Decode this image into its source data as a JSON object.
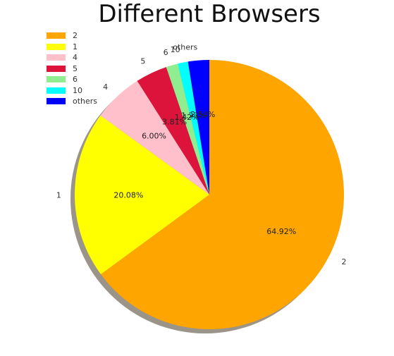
{
  "chart_data": {
    "type": "pie",
    "title": "Different Browsers",
    "slices": [
      {
        "label": "2",
        "value": 64.92,
        "pct_label": "64.92%",
        "color": "#FFA500"
      },
      {
        "label": "1",
        "value": 20.08,
        "pct_label": "20.08%",
        "color": "#FFFF00"
      },
      {
        "label": "4",
        "value": 6.0,
        "pct_label": "6.00%",
        "color": "#FFC0CB"
      },
      {
        "label": "5",
        "value": 3.81,
        "pct_label": "3.81%",
        "color": "#DC143C"
      },
      {
        "label": "6",
        "value": 1.42,
        "pct_label": "1.42%",
        "color": "#90EE90"
      },
      {
        "label": "10",
        "value": 1.23,
        "pct_label": "1.23%",
        "color": "#00FFFF"
      },
      {
        "label": "others",
        "value": 2.54,
        "pct_label": "2.54%",
        "color": "#0000FF"
      }
    ],
    "start_angle_deg": 90,
    "direction": "clockwise",
    "shadow": true,
    "legend_position": "top-left"
  }
}
